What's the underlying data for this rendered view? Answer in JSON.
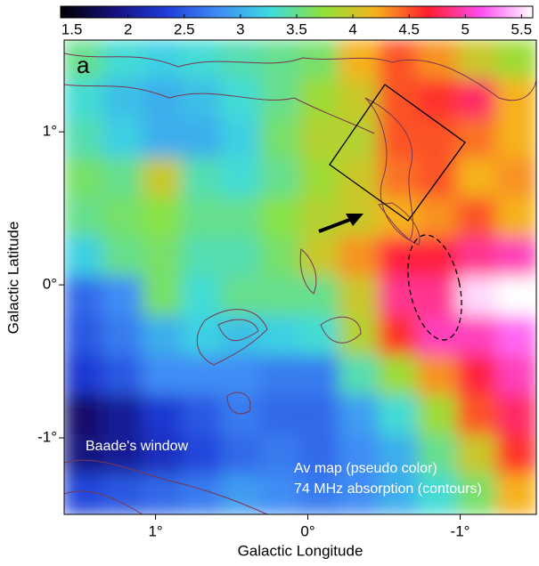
{
  "chart_data": {
    "type": "heatmap",
    "panel_label": "a",
    "xlabel": "Galactic Longitude",
    "ylabel": "Galactic Latitude",
    "xlim": [
      1.6,
      -1.5
    ],
    "ylim": [
      -1.5,
      1.6
    ],
    "xticks": [
      {
        "value": 1,
        "label": "1°"
      },
      {
        "value": 0,
        "label": "0°"
      },
      {
        "value": -1,
        "label": "-1°"
      }
    ],
    "yticks": [
      {
        "value": 1,
        "label": "1°"
      },
      {
        "value": 0,
        "label": "0°"
      },
      {
        "value": -1,
        "label": "-1°"
      }
    ],
    "clim": [
      1.4,
      5.6
    ],
    "cticks": [
      1.5,
      2,
      2.5,
      3,
      3.5,
      4,
      4.5,
      5,
      5.5
    ],
    "colormap": [
      "#000000",
      "#15107a",
      "#1f3bd8",
      "#3f8cf5",
      "#3ddbe0",
      "#8ee23a",
      "#f6b21e",
      "#ff1d2e",
      "#ff4cf0",
      "#ffffff"
    ],
    "annotations": [
      "Baade's window",
      "Av map (pseudo color)",
      "74 MHz absorption (contours)"
    ],
    "z": [
      [
        3.5,
        3.3,
        3.2,
        3.3,
        3.4,
        3.5,
        3.6,
        4.2,
        4.5,
        4.3,
        4.0,
        3.8
      ],
      [
        3.3,
        3.1,
        3.0,
        3.1,
        3.3,
        3.5,
        3.8,
        4.0,
        4.5,
        4.6,
        4.8,
        4.2
      ],
      [
        3.4,
        3.2,
        3.0,
        3.0,
        3.2,
        3.6,
        3.9,
        3.9,
        4.5,
        4.5,
        4.4,
        4.2
      ],
      [
        3.6,
        3.5,
        4.0,
        3.4,
        3.3,
        3.5,
        3.8,
        4.0,
        4.4,
        4.5,
        4.2,
        4.3
      ],
      [
        3.5,
        3.6,
        3.7,
        3.5,
        3.5,
        3.7,
        3.9,
        4.0,
        4.2,
        4.3,
        4.5,
        4.2
      ],
      [
        3.2,
        3.5,
        3.6,
        3.4,
        3.4,
        3.6,
        4.0,
        4.3,
        4.7,
        4.7,
        4.9,
        5.0
      ],
      [
        2.6,
        2.8,
        3.6,
        3.3,
        3.5,
        3.5,
        3.5,
        4.0,
        4.9,
        4.9,
        5.5,
        5.6
      ],
      [
        2.5,
        2.7,
        3.0,
        3.2,
        3.1,
        3.2,
        3.3,
        3.9,
        4.6,
        5.0,
        5.0,
        5.2
      ],
      [
        2.3,
        2.5,
        2.8,
        2.8,
        2.8,
        2.7,
        2.7,
        3.4,
        3.8,
        4.3,
        4.7,
        5.0
      ],
      [
        1.8,
        2.0,
        2.3,
        2.5,
        2.7,
        2.6,
        2.6,
        2.9,
        3.3,
        3.8,
        4.5,
        4.8
      ],
      [
        1.9,
        2.0,
        2.2,
        2.4,
        2.6,
        2.7,
        2.6,
        2.8,
        3.0,
        3.5,
        4.0,
        4.6
      ],
      [
        2.4,
        2.5,
        2.6,
        2.7,
        2.9,
        2.8,
        2.7,
        2.8,
        3.0,
        3.3,
        3.6,
        4.2
      ]
    ]
  }
}
